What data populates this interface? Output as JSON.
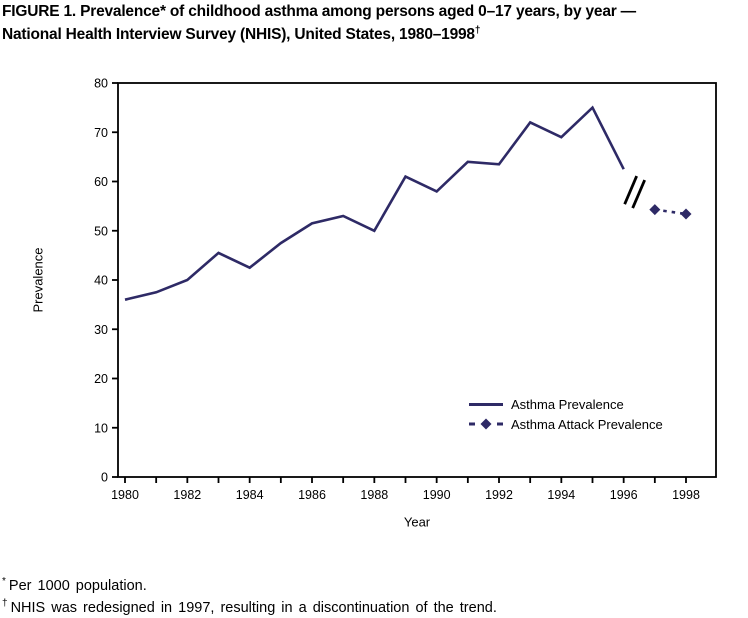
{
  "title": {
    "line1": "FIGURE 1. Prevalence* of childhood asthma among persons aged 0–17 years, by year —",
    "line2_text": "National Health Interview Survey (NHIS), United States, 1980–1998",
    "line2_sup": "†"
  },
  "colors": {
    "series_navy": "#2e2a66",
    "axis_black": "#000000",
    "background": "#ffffff"
  },
  "chart_data": {
    "type": "line",
    "title": "",
    "xlabel": "Year",
    "ylabel": "Prevalence",
    "x_range": [
      1980,
      1998
    ],
    "ylim": [
      0,
      80
    ],
    "y_ticks": [
      0,
      10,
      20,
      30,
      40,
      50,
      60,
      70,
      80
    ],
    "x_tick_labels": [
      1980,
      1982,
      1984,
      1986,
      1988,
      1990,
      1992,
      1994,
      1996,
      1998
    ],
    "x_minor_tick_every": 1,
    "grid": "off",
    "legend_position": "inside-lower-right",
    "series": [
      {
        "name": "Asthma Prevalence",
        "style": "solid",
        "color": "#2e2a66",
        "x": [
          1980,
          1981,
          1982,
          1983,
          1984,
          1985,
          1986,
          1987,
          1988,
          1989,
          1990,
          1991,
          1992,
          1993,
          1994,
          1995,
          1996
        ],
        "values": [
          36,
          37.5,
          40,
          45.5,
          42.5,
          47.5,
          51.5,
          53,
          50,
          61,
          58,
          64,
          63.5,
          72,
          69,
          75,
          62.5
        ]
      },
      {
        "name": "Asthma Attack Prevalence",
        "style": "dashed-diamond",
        "color": "#2e2a66",
        "x": [
          1997,
          1998
        ],
        "values": [
          54.3,
          53.4
        ]
      }
    ],
    "break_marker": {
      "between_years": [
        1996,
        1997
      ],
      "symbol": "double-slash",
      "color": "#000000"
    }
  },
  "legend": {
    "items": [
      {
        "label": "Asthma Prevalence"
      },
      {
        "label": "Asthma Attack Prevalence"
      }
    ]
  },
  "footnotes": [
    {
      "marker": "*",
      "text": "Per 1000 population."
    },
    {
      "marker": "†",
      "text": "NHIS was redesigned in 1997, resulting in a discontinuation of the trend."
    }
  ]
}
